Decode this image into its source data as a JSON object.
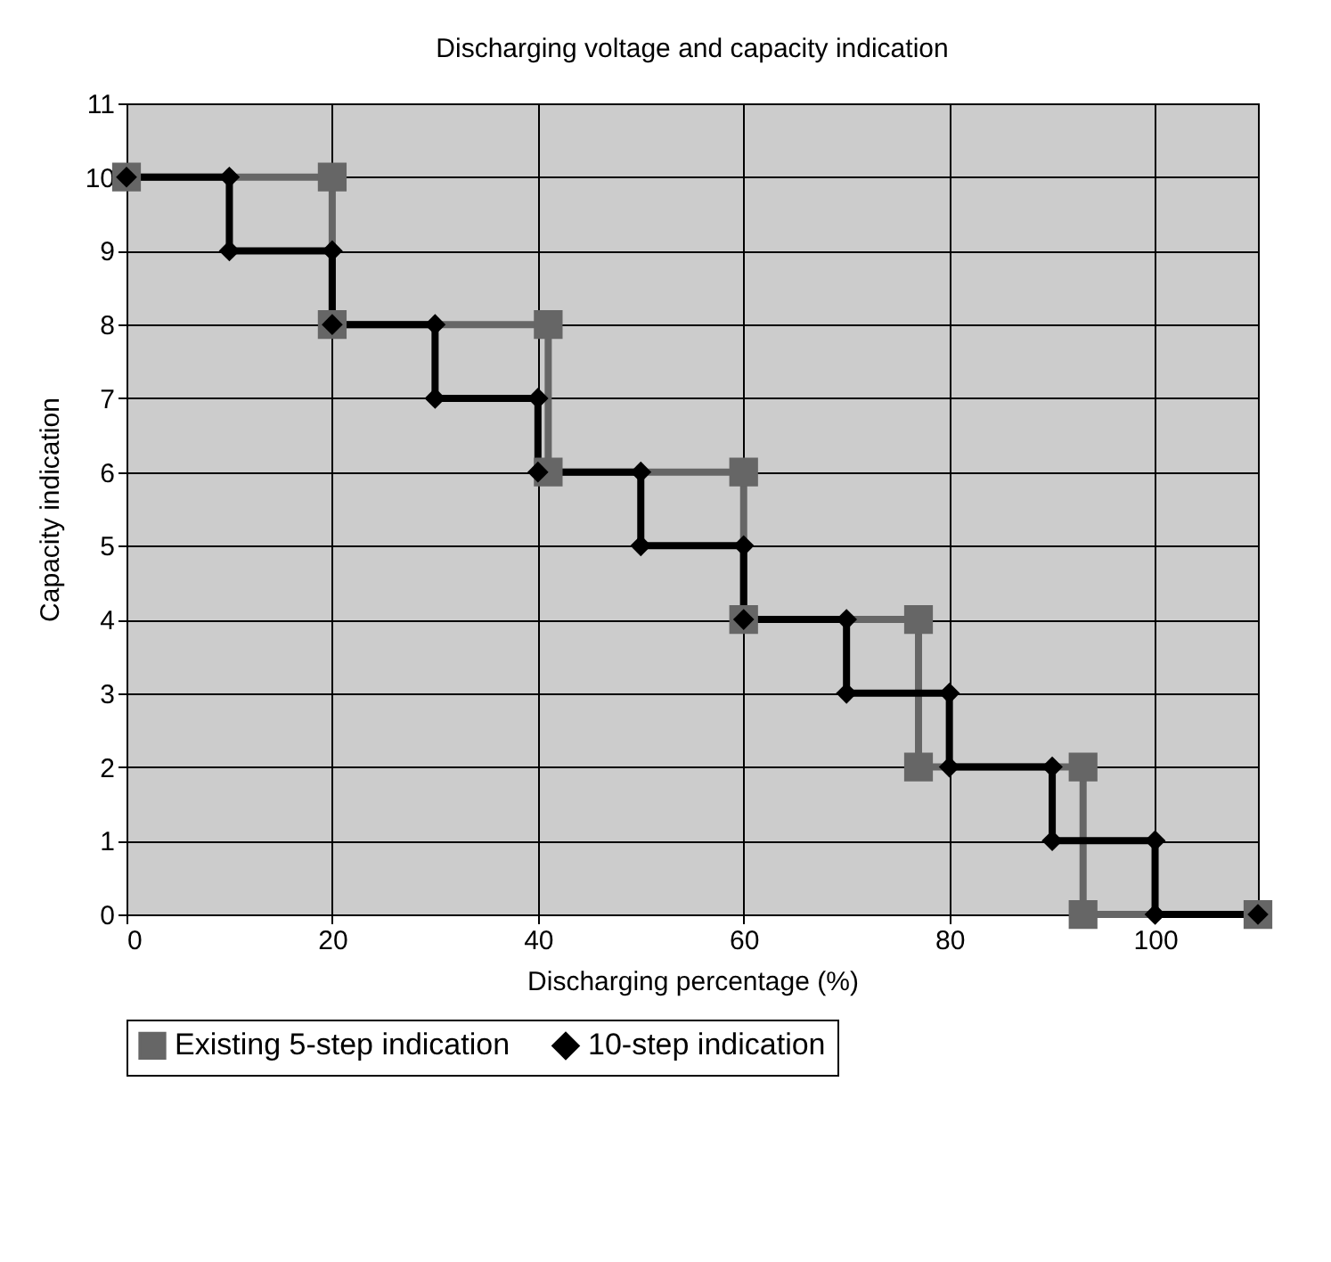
{
  "chart_data": {
    "type": "line",
    "title": "Discharging voltage and capacity indication",
    "xlabel": "Discharging percentage (%)",
    "ylabel": "Capacity indication",
    "series": [
      {
        "name": "Existing 5-step indication",
        "color": "#666666",
        "marker": "square",
        "x": [
          0,
          20,
          20,
          41,
          41,
          60,
          60,
          77,
          77,
          93,
          93,
          110
        ],
        "values": [
          10,
          10,
          8,
          8,
          6,
          6,
          4,
          4,
          2,
          2,
          0,
          0
        ]
      },
      {
        "name": "10-step indication",
        "color": "#000000",
        "marker": "diamond",
        "x": [
          0,
          10,
          10,
          20,
          20,
          30,
          30,
          40,
          40,
          50,
          50,
          60,
          60,
          70,
          70,
          80,
          80,
          90,
          90,
          100,
          100,
          110
        ],
        "values": [
          10,
          10,
          9,
          9,
          8,
          8,
          7,
          7,
          6,
          6,
          5,
          5,
          4,
          4,
          3,
          3,
          2,
          2,
          1,
          1,
          0,
          0
        ]
      }
    ],
    "xlim": [
      0,
      110
    ],
    "xticks": [
      0,
      20,
      40,
      60,
      80,
      100
    ],
    "ylim": [
      0,
      11
    ],
    "yticks": [
      0,
      1,
      2,
      3,
      4,
      5,
      6,
      7,
      8,
      9,
      10,
      11
    ],
    "grid": true,
    "legend": "bottom"
  }
}
